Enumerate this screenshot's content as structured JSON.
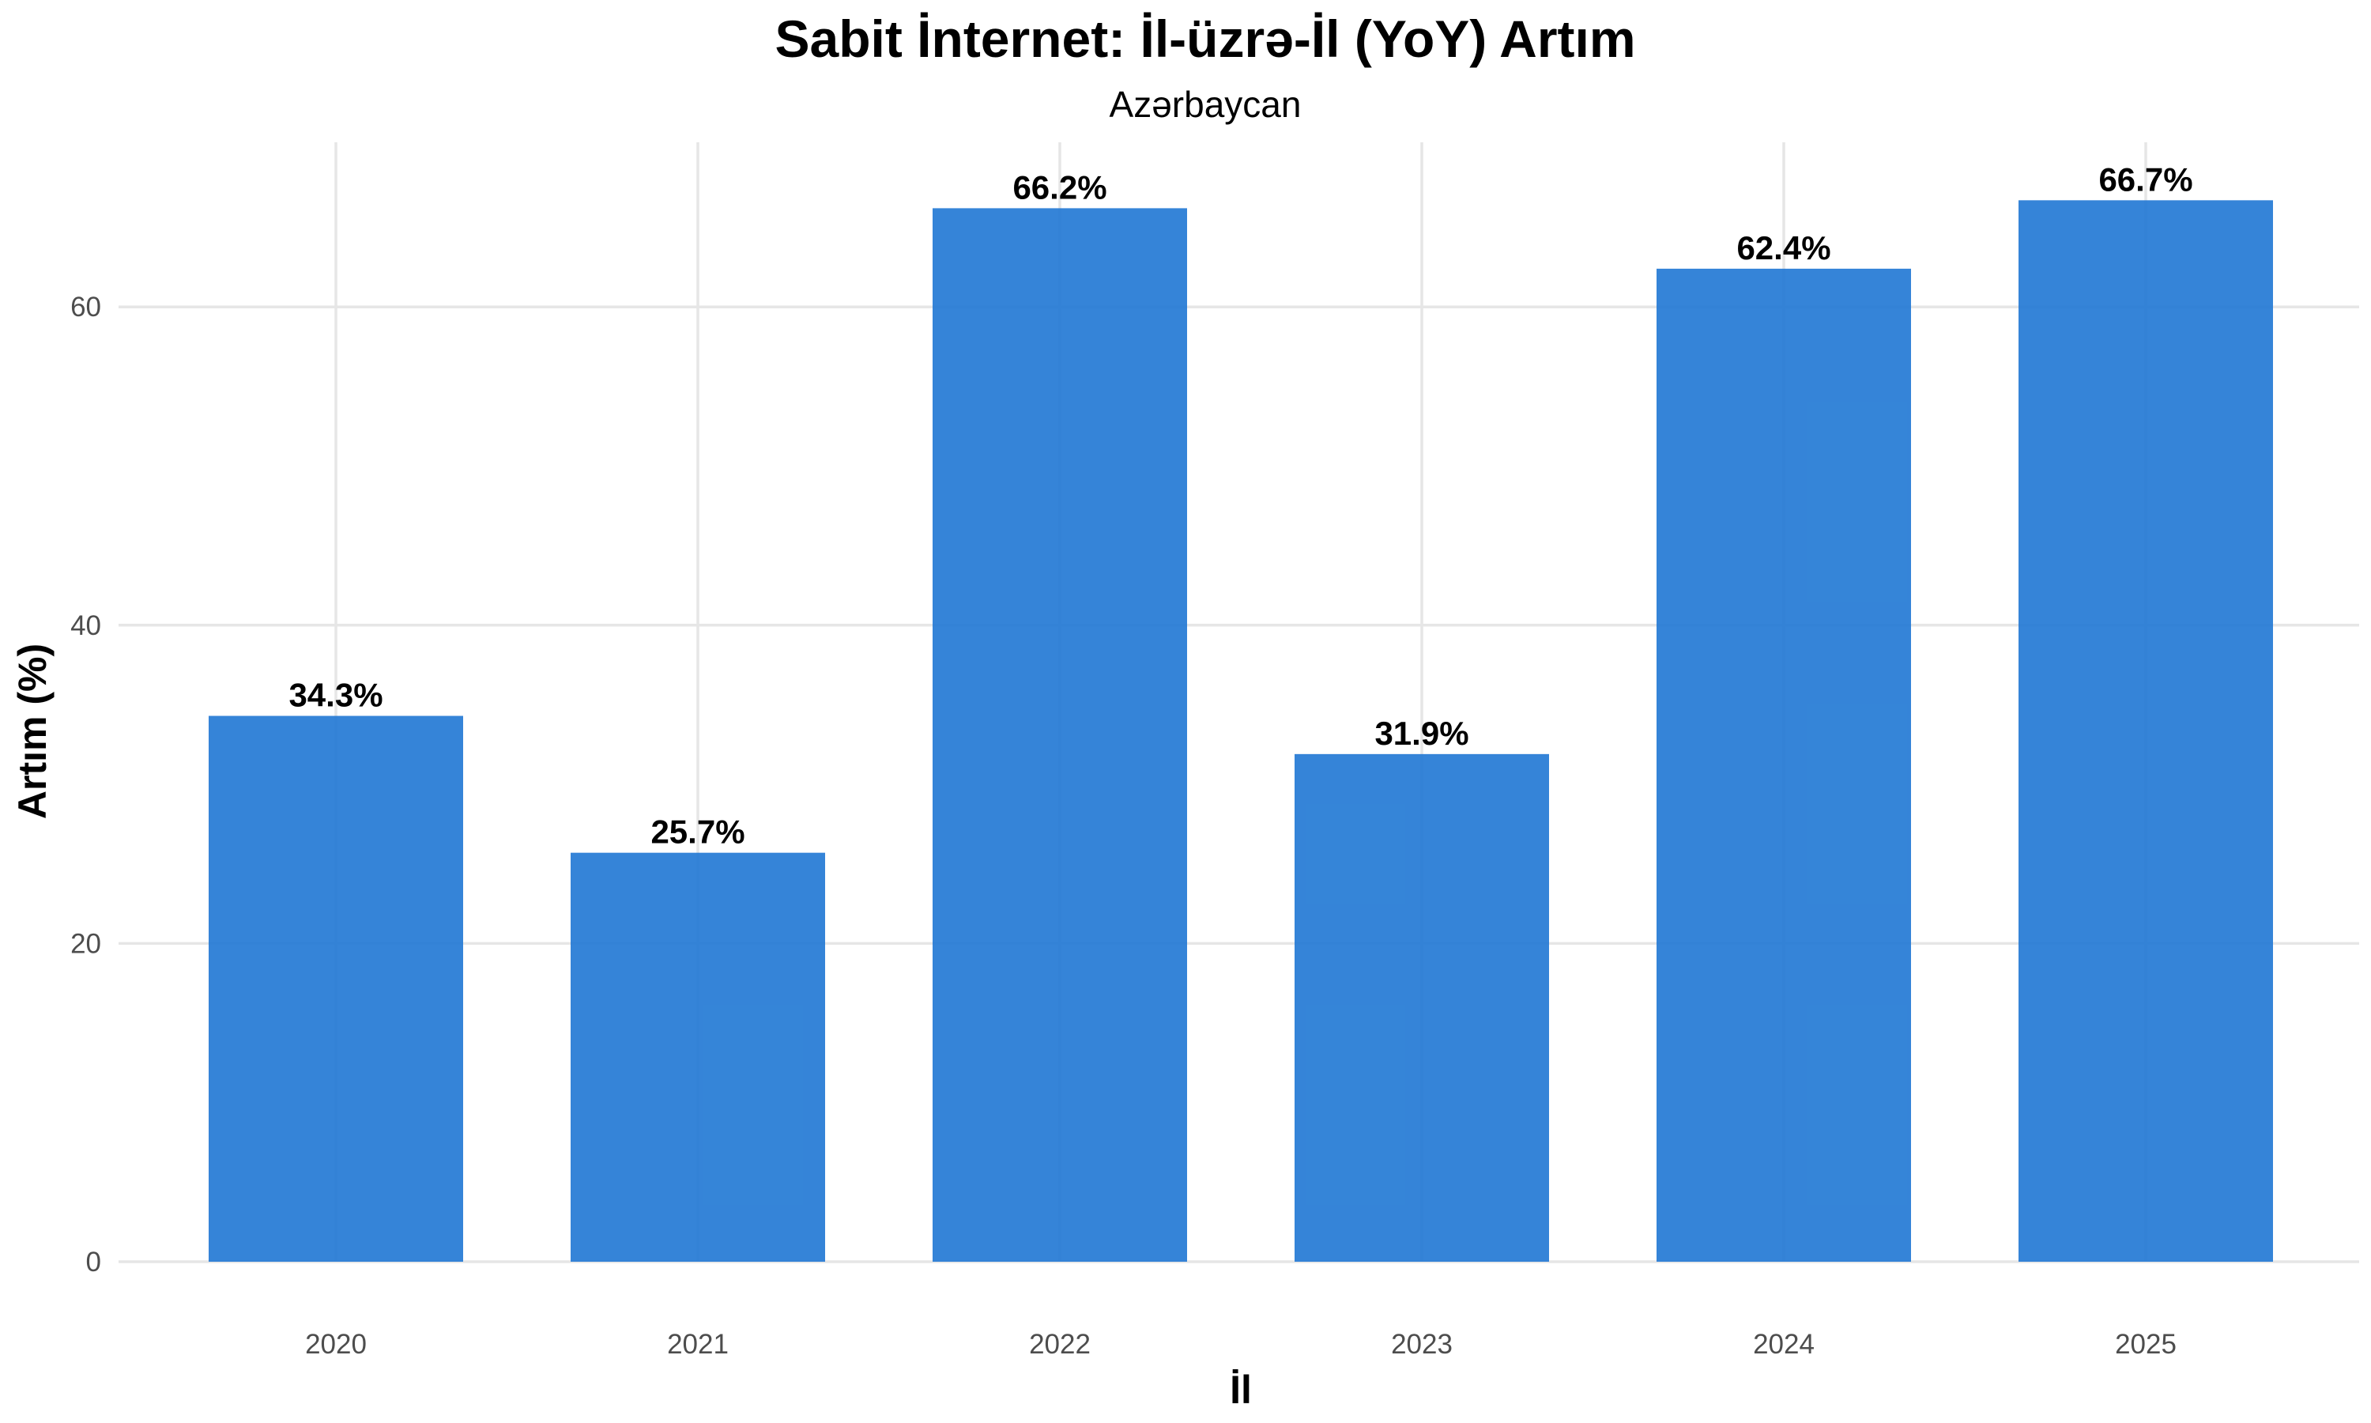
{
  "chart_data": {
    "type": "bar",
    "title": "Sabit İnternet: İl-üzrə-İl (YoY) Artım",
    "subtitle": "Azərbaycan",
    "xlabel": "İl",
    "ylabel": "Artım (%)",
    "categories": [
      "2020",
      "2021",
      "2022",
      "2023",
      "2024",
      "2025"
    ],
    "values": [
      34.3,
      25.7,
      66.2,
      31.9,
      62.4,
      66.7
    ],
    "data_labels": [
      "34.3%",
      "25.7%",
      "66.2%",
      "31.9%",
      "62.4%",
      "66.7%"
    ],
    "yticks": [
      0,
      20,
      40,
      60
    ],
    "ytick_labels": [
      "0",
      "20",
      "40",
      "60"
    ],
    "ylim": [
      0,
      70
    ],
    "grid": true,
    "legend": "none",
    "bar_color": "#1f77d4"
  }
}
